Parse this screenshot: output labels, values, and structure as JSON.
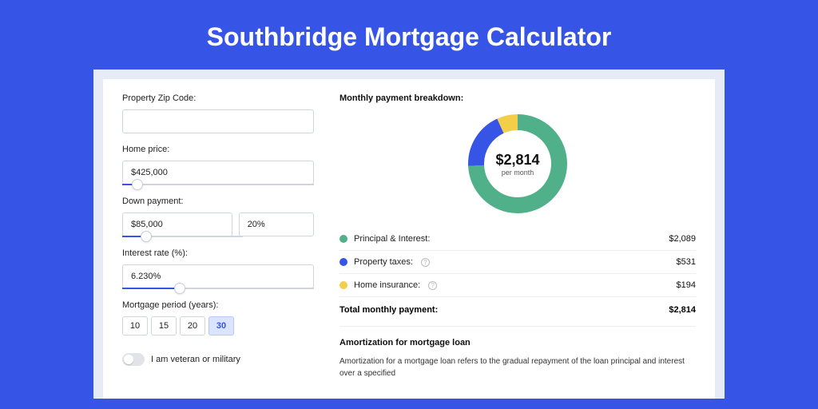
{
  "page": {
    "title": "Southbridge Mortgage Calculator",
    "background_color": "#3654e6",
    "card_background": "#ffffff",
    "card_wrap_background": "#e6ebf5"
  },
  "form": {
    "zip": {
      "label": "Property Zip Code:",
      "value": ""
    },
    "home_price": {
      "label": "Home price:",
      "value": "$425,000",
      "slider_pct": 8
    },
    "down_payment": {
      "label": "Down payment:",
      "amount": "$85,000",
      "percent": "20%",
      "slider_pct": 20
    },
    "interest_rate": {
      "label": "Interest rate (%):",
      "value": "6.230%",
      "slider_pct": 30
    },
    "period": {
      "label": "Mortgage period (years):",
      "options": [
        "10",
        "15",
        "20",
        "30"
      ],
      "selected": "30"
    },
    "veteran": {
      "label": "I am veteran or military",
      "checked": false
    }
  },
  "breakdown": {
    "title": "Monthly payment breakdown:",
    "donut": {
      "amount": "$2,814",
      "sub": "per month",
      "size": 124,
      "stroke_width": 20,
      "slices": [
        {
          "key": "principal_interest",
          "color": "#4fb08a",
          "pct": 74.2
        },
        {
          "key": "property_taxes",
          "color": "#3654e6",
          "pct": 18.9
        },
        {
          "key": "home_insurance",
          "color": "#f2ce4b",
          "pct": 6.9
        }
      ]
    },
    "legend": [
      {
        "label": "Principal & Interest:",
        "value": "$2,089",
        "color": "#4fb08a",
        "help": false
      },
      {
        "label": "Property taxes:",
        "value": "$531",
        "color": "#3654e6",
        "help": true
      },
      {
        "label": "Home insurance:",
        "value": "$194",
        "color": "#f2ce4b",
        "help": true
      }
    ],
    "total": {
      "label": "Total monthly payment:",
      "value": "$2,814"
    }
  },
  "amortization": {
    "title": "Amortization for mortgage loan",
    "text": "Amortization for a mortgage loan refers to the gradual repayment of the loan principal and interest over a specified"
  }
}
